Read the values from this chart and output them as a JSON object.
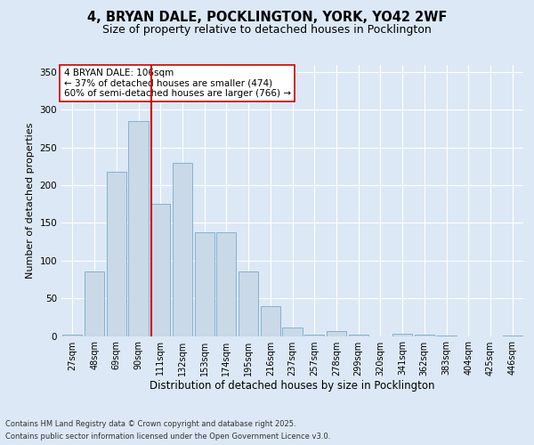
{
  "title_line1": "4, BRYAN DALE, POCKLINGTON, YORK, YO42 2WF",
  "title_line2": "Size of property relative to detached houses in Pocklington",
  "xlabel": "Distribution of detached houses by size in Pocklington",
  "ylabel": "Number of detached properties",
  "categories": [
    "27sqm",
    "48sqm",
    "69sqm",
    "90sqm",
    "111sqm",
    "132sqm",
    "153sqm",
    "174sqm",
    "195sqm",
    "216sqm",
    "237sqm",
    "257sqm",
    "278sqm",
    "299sqm",
    "320sqm",
    "341sqm",
    "362sqm",
    "383sqm",
    "404sqm",
    "425sqm",
    "446sqm"
  ],
  "values": [
    2,
    85,
    218,
    285,
    175,
    230,
    138,
    138,
    85,
    40,
    11,
    2,
    7,
    2,
    0,
    3,
    2,
    1,
    0,
    0,
    1
  ],
  "bar_color": "#c9d9e8",
  "bar_edge_color": "#7aaac8",
  "vline_x": 3.57,
  "vline_color": "#cc0000",
  "annotation_text": "4 BRYAN DALE: 106sqm\n← 37% of detached houses are smaller (474)\n60% of semi-detached houses are larger (766) →",
  "annotation_box_color": "#ffffff",
  "annotation_box_edge": "#cc0000",
  "ylim": [
    0,
    360
  ],
  "yticks": [
    0,
    50,
    100,
    150,
    200,
    250,
    300,
    350
  ],
  "footer_line1": "Contains HM Land Registry data © Crown copyright and database right 2025.",
  "footer_line2": "Contains public sector information licensed under the Open Government Licence v3.0.",
  "bg_color": "#dce8f5",
  "plot_bg_color": "#dce8f5",
  "title1_fontsize": 10.5,
  "title2_fontsize": 9,
  "ylabel_fontsize": 8,
  "xlabel_fontsize": 8.5,
  "tick_fontsize": 7,
  "annot_fontsize": 7.5,
  "footer_fontsize": 6
}
